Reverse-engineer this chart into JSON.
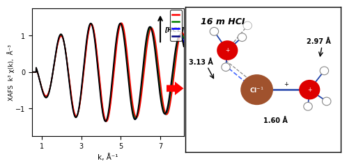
{
  "title_right": "16 m HCL",
  "ylabel": "XAFS  k³ χ(k),  Å⁻³",
  "xlabel": "k, Å⁻¹",
  "xlim": [
    0.5,
    8.2
  ],
  "ylim": [
    -1.75,
    1.75
  ],
  "xticks": [
    1,
    3,
    5,
    7
  ],
  "yticks": [
    -1,
    0,
    1
  ],
  "line_colors": [
    "red",
    "green",
    "blue",
    "#00008B"
  ],
  "legend_label": "[HCL]",
  "dist_313": "3.13 Å",
  "dist_297": "2.97 Å",
  "dist_160": "1.60 Å",
  "bg_color": "#ffffff"
}
